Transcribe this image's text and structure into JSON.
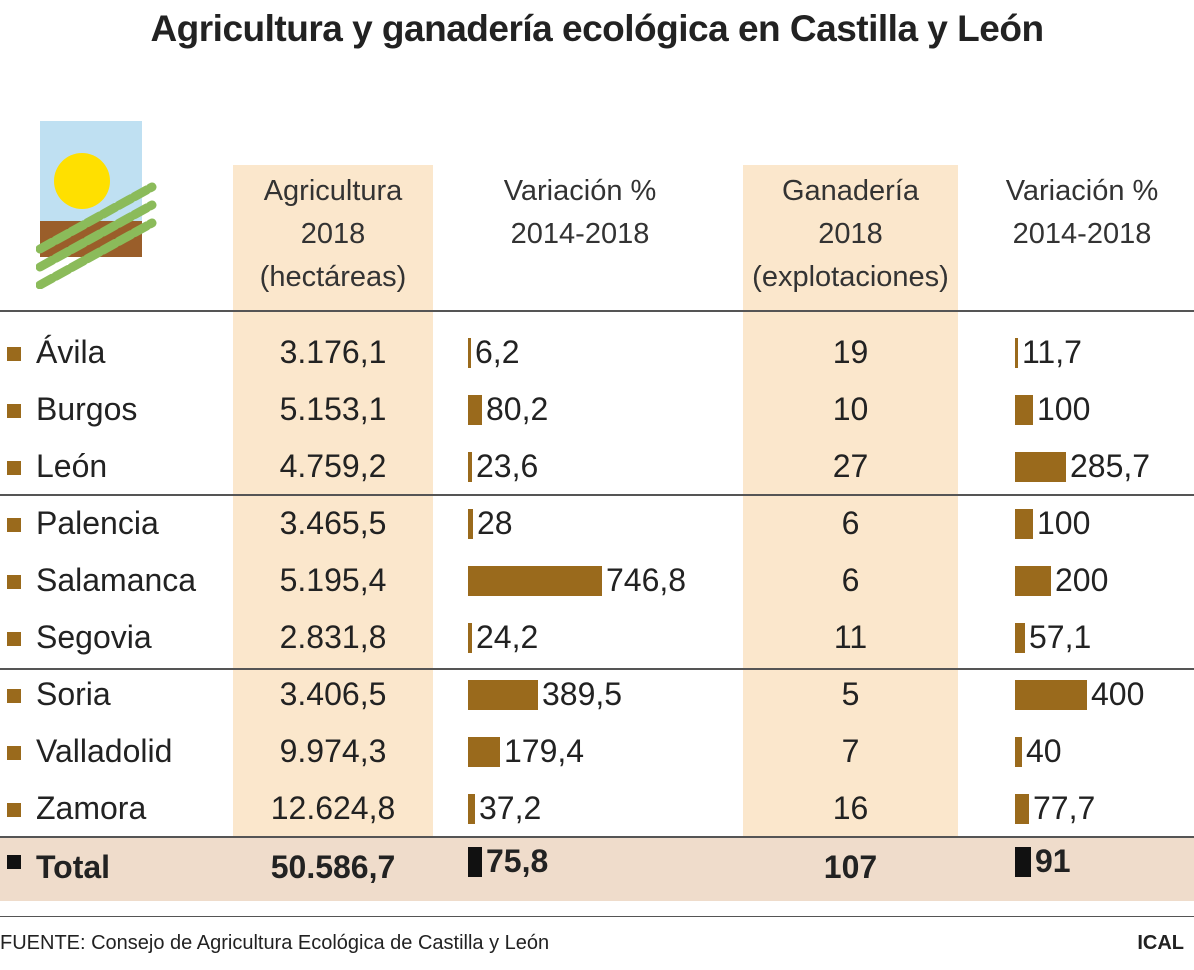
{
  "title": "Agricultura y ganadería ecológica en Castilla y León",
  "headers": {
    "agricultura": [
      "Agricultura",
      "2018",
      "(hectáreas)"
    ],
    "variacion_agri": [
      "Variación %",
      "2014-2018"
    ],
    "ganaderia": [
      "Ganadería",
      "2018",
      "(explotaciones)"
    ],
    "variacion_gan": [
      "Variación %",
      "2014-2018"
    ]
  },
  "colors": {
    "bar": "#9a6a1c",
    "column_highlight": "#fbe7cc",
    "total_band": "#efdccb",
    "total_bar": "#111111"
  },
  "chart_data": {
    "type": "table",
    "title": "Agricultura y ganadería ecológica en Castilla y León",
    "columns": [
      "Agricultura 2018 (hectáreas)",
      "Variación % 2014-2018",
      "Ganadería 2018 (explotaciones)",
      "Variación % 2014-2018"
    ],
    "rows": [
      {
        "provincia": "Ávila",
        "agricultura": "3.176,1",
        "var_agri": 6.2,
        "var_agri_label": "6,2",
        "ganaderia": "19",
        "var_gan": 11.7,
        "var_gan_label": "11,7"
      },
      {
        "provincia": "Burgos",
        "agricultura": "5.153,1",
        "var_agri": 80.2,
        "var_agri_label": "80,2",
        "ganaderia": "10",
        "var_gan": 100,
        "var_gan_label": "100"
      },
      {
        "provincia": "León",
        "agricultura": "4.759,2",
        "var_agri": 23.6,
        "var_agri_label": "23,6",
        "ganaderia": "27",
        "var_gan": 285.7,
        "var_gan_label": "285,7"
      },
      {
        "provincia": "Palencia",
        "agricultura": "3.465,5",
        "var_agri": 28,
        "var_agri_label": "28",
        "ganaderia": "6",
        "var_gan": 100,
        "var_gan_label": "100"
      },
      {
        "provincia": "Salamanca",
        "agricultura": "5.195,4",
        "var_agri": 746.8,
        "var_agri_label": "746,8",
        "ganaderia": "6",
        "var_gan": 200,
        "var_gan_label": "200"
      },
      {
        "provincia": "Segovia",
        "agricultura": "2.831,8",
        "var_agri": 24.2,
        "var_agri_label": "24,2",
        "ganaderia": "11",
        "var_gan": 57.1,
        "var_gan_label": "57,1"
      },
      {
        "provincia": "Soria",
        "agricultura": "3.406,5",
        "var_agri": 389.5,
        "var_agri_label": "389,5",
        "ganaderia": "5",
        "var_gan": 400,
        "var_gan_label": "400"
      },
      {
        "provincia": "Valladolid",
        "agricultura": "9.974,3",
        "var_agri": 179.4,
        "var_agri_label": "179,4",
        "ganaderia": "7",
        "var_gan": 40,
        "var_gan_label": "40"
      },
      {
        "provincia": "Zamora",
        "agricultura": "12.624,8",
        "var_agri": 37.2,
        "var_agri_label": "37,2",
        "ganaderia": "16",
        "var_gan": 77.7,
        "var_gan_label": "77,7"
      }
    ],
    "total": {
      "provincia": "Total",
      "agricultura": "50.586,7",
      "var_agri": 75.8,
      "var_agri_label": "75,8",
      "ganaderia": "107",
      "var_gan": 91,
      "var_gan_label": "91"
    }
  },
  "footer": {
    "source": "FUENTE: Consejo de Agricultura Ecológica de Castilla y León",
    "brand": "ICAL"
  }
}
